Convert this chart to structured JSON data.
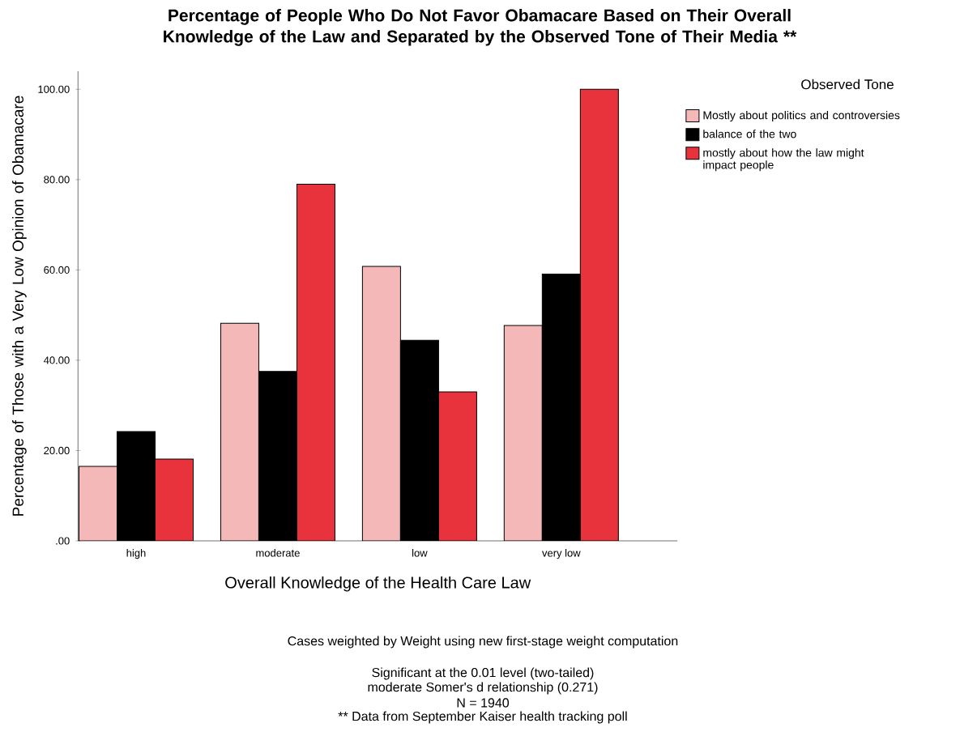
{
  "chart_data": {
    "type": "bar",
    "title": "Percentage of People Who Do Not  Favor Obamacare Based on Their Overall Knowledge of the Law and Separated by the Observed Tone of Their Media **",
    "xlabel": "Overall Knowledge of the Health Care Law",
    "ylabel": "Percentage of Those with a Very Low Opinion of Obamacare",
    "legend_title": "Observed Tone",
    "legend": "right",
    "categories": [
      "high",
      "moderate",
      "low",
      "very low"
    ],
    "series": [
      {
        "name": "Mostly about politics and controversies",
        "color": "#f4b8b8",
        "values": [
          16.5,
          48.2,
          60.8,
          47.7
        ]
      },
      {
        "name": "balance of the two",
        "color": "#000000",
        "values": [
          24.2,
          37.5,
          44.4,
          59.1
        ]
      },
      {
        "name": "mostly about how the law might impact people",
        "color": "#e8323c",
        "values": [
          18.1,
          79.0,
          33.0,
          100.0
        ]
      }
    ],
    "ylim": [
      0,
      104
    ],
    "yticks": [
      {
        "value": 0,
        "label": ".00"
      },
      {
        "value": 20,
        "label": "20.00"
      },
      {
        "value": 40,
        "label": "40.00"
      },
      {
        "value": 60,
        "label": "60.00"
      },
      {
        "value": 80,
        "label": "80.00"
      },
      {
        "value": 100,
        "label": "100.00"
      }
    ],
    "annotations": [
      "Cases weighted by Weight using new first-stage weight computation",
      "Significant at the 0.01 level (two-tailed)",
      "moderate Somer's d relationship (0.271)",
      "N = 1940",
      "** Data from September Kaiser health tracking poll"
    ]
  }
}
